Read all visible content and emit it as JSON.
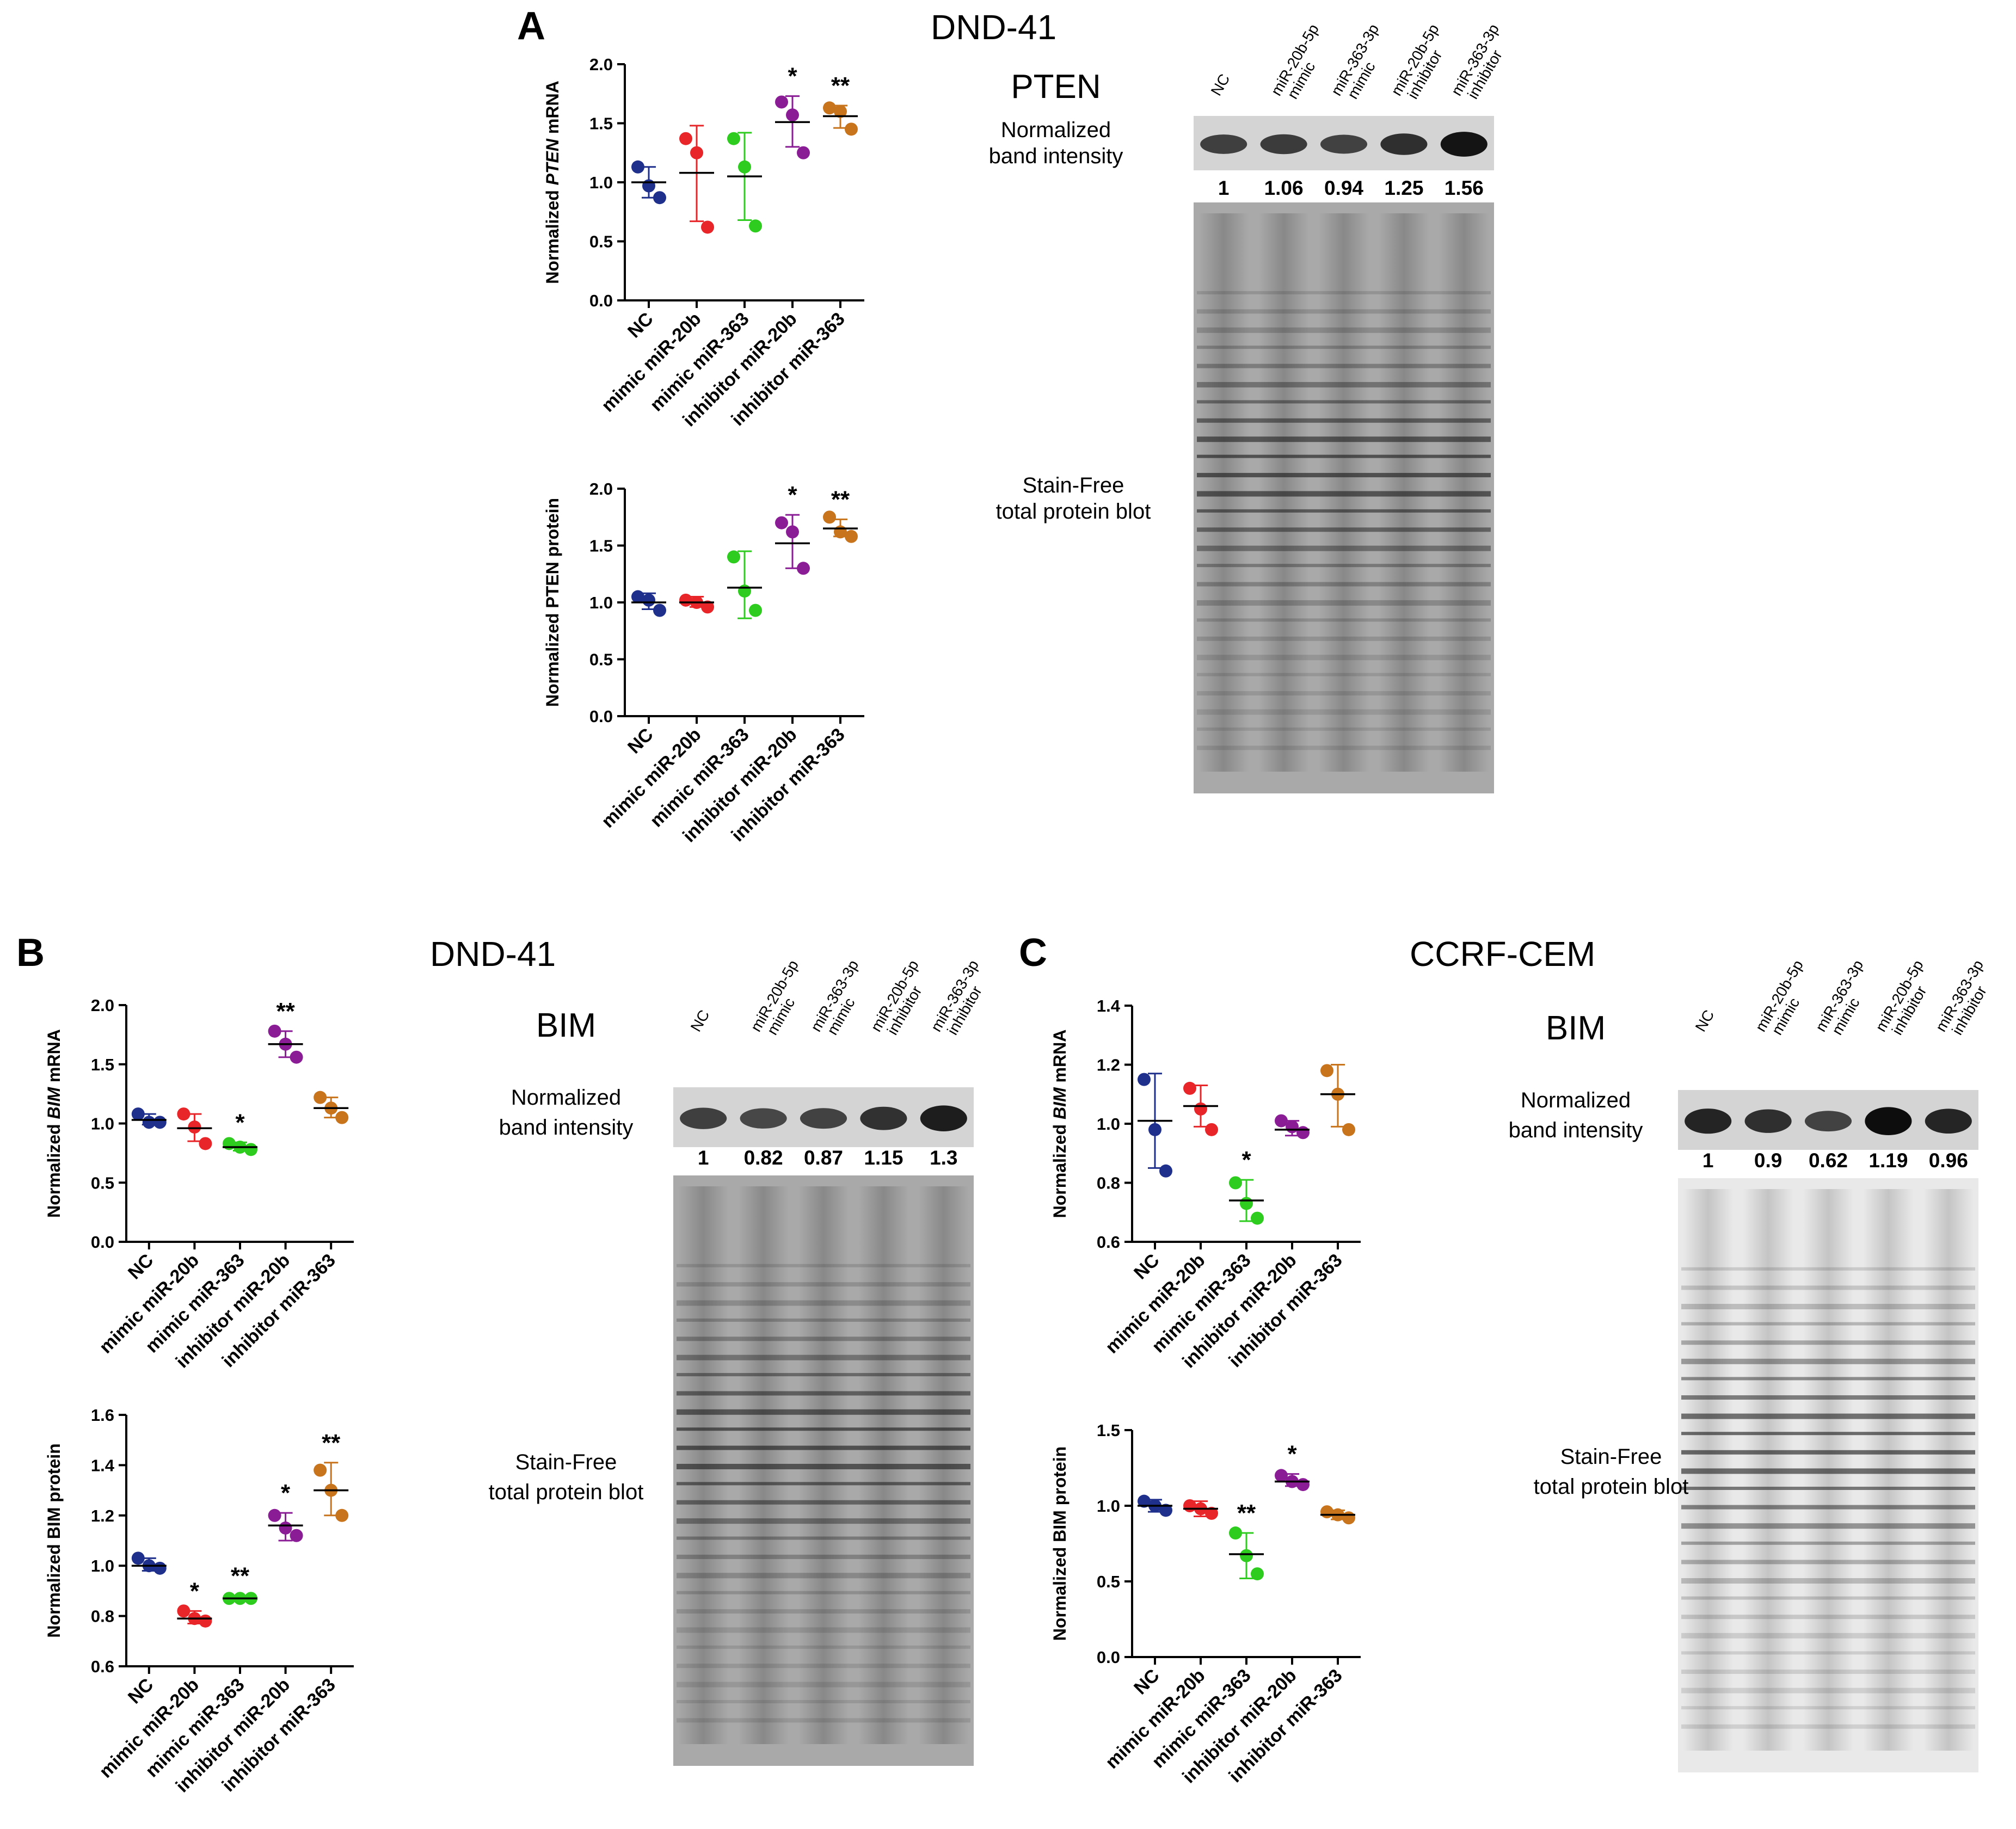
{
  "titles": {
    "panel_a_letter": "A",
    "panel_a_cell": "DND-41",
    "panel_b_letter": "B",
    "panel_b_cell": "DND-41",
    "panel_c_letter": "C",
    "panel_c_cell": "CCRF-CEM"
  },
  "colors": {
    "NC": "#1f2f8c",
    "mimic_miR20b": "#e8262a",
    "mimic_miR363": "#2ecc1f",
    "inhibitor_miR20b": "#8a1d96",
    "inhibitor_miR363": "#c8741d"
  },
  "chart_data": [
    {
      "id": "A_mrna",
      "type": "scatter",
      "ylabel_pre": "Normalized ",
      "ylabel_italic": "PTEN",
      "ylabel_post": " mRNA",
      "ylim": [
        0,
        2.0
      ],
      "yticks": [
        "0.0",
        "0.5",
        "1.0",
        "1.5",
        "2.0"
      ],
      "ytick_values": [
        0,
        0.5,
        1.0,
        1.5,
        2.0
      ],
      "categories": [
        "NC",
        "mimic miR-20b",
        "mimic miR-363",
        "inhibitor miR-20b",
        "inhibitor miR-363"
      ],
      "points": [
        [
          1.13,
          0.97,
          0.87
        ],
        [
          1.37,
          1.25,
          0.62
        ],
        [
          1.37,
          1.13,
          0.63
        ],
        [
          1.68,
          1.57,
          1.25
        ],
        [
          1.63,
          1.6,
          1.45
        ]
      ],
      "means": [
        1.0,
        1.08,
        1.05,
        1.51,
        1.56
      ],
      "err_low": [
        0.87,
        0.67,
        0.68,
        1.3,
        1.46
      ],
      "err_high": [
        1.13,
        1.48,
        1.42,
        1.73,
        1.65
      ],
      "significance": [
        "",
        "",
        "",
        "*",
        "**"
      ]
    },
    {
      "id": "A_protein",
      "type": "scatter",
      "ylabel_pre": "Normalized PTEN protein",
      "ylabel_italic": "",
      "ylabel_post": "",
      "ylim": [
        0,
        2.0
      ],
      "yticks": [
        "0.0",
        "0.5",
        "1.0",
        "1.5",
        "2.0"
      ],
      "ytick_values": [
        0,
        0.5,
        1.0,
        1.5,
        2.0
      ],
      "categories": [
        "NC",
        "mimic miR-20b",
        "mimic miR-363",
        "inhibitor miR-20b",
        "inhibitor miR-363"
      ],
      "points": [
        [
          1.05,
          1.02,
          0.93
        ],
        [
          1.02,
          1.0,
          0.96
        ],
        [
          1.4,
          1.1,
          0.93
        ],
        [
          1.7,
          1.62,
          1.3
        ],
        [
          1.75,
          1.62,
          1.58
        ]
      ],
      "means": [
        1.0,
        1.0,
        1.13,
        1.52,
        1.65
      ],
      "err_low": [
        0.94,
        0.96,
        0.86,
        1.3,
        1.58
      ],
      "err_high": [
        1.08,
        1.05,
        1.45,
        1.77,
        1.73
      ],
      "significance": [
        "",
        "",
        "",
        "*",
        "**"
      ]
    },
    {
      "id": "B_mrna",
      "type": "scatter",
      "ylabel_pre": "Normalized ",
      "ylabel_italic": "BIM",
      "ylabel_post": " mRNA",
      "ylim": [
        0,
        2.0
      ],
      "yticks": [
        "0.0",
        "0.5",
        "1.0",
        "1.5",
        "2.0"
      ],
      "ytick_values": [
        0,
        0.5,
        1.0,
        1.5,
        2.0
      ],
      "categories": [
        "NC",
        "mimic miR-20b",
        "mimic miR-363",
        "inhibitor miR-20b",
        "inhibitor miR-363"
      ],
      "points": [
        [
          1.08,
          1.01,
          1.01
        ],
        [
          1.08,
          0.97,
          0.83
        ],
        [
          0.83,
          0.8,
          0.78
        ],
        [
          1.78,
          1.67,
          1.56
        ],
        [
          1.22,
          1.13,
          1.05
        ]
      ],
      "means": [
        1.03,
        0.96,
        0.8,
        1.67,
        1.13
      ],
      "err_low": [
        0.99,
        0.85,
        0.77,
        1.56,
        1.05
      ],
      "err_high": [
        1.08,
        1.08,
        0.84,
        1.78,
        1.22
      ],
      "significance": [
        "",
        "",
        "*",
        "**",
        ""
      ]
    },
    {
      "id": "B_protein",
      "type": "scatter",
      "ylabel_pre": "Normalized BIM protein",
      "ylabel_italic": "",
      "ylabel_post": "",
      "ylim": [
        0.6,
        1.6
      ],
      "yticks": [
        "0.6",
        "0.8",
        "1.0",
        "1.2",
        "1.4",
        "1.6"
      ],
      "ytick_values": [
        0.6,
        0.8,
        1.0,
        1.2,
        1.4,
        1.6
      ],
      "categories": [
        "NC",
        "mimic miR-20b",
        "mimic miR-363",
        "inhibitor miR-20b",
        "inhibitor miR-363"
      ],
      "points": [
        [
          1.03,
          1.0,
          0.99
        ],
        [
          0.82,
          0.79,
          0.78
        ],
        [
          0.87,
          0.87,
          0.87
        ],
        [
          1.2,
          1.15,
          1.12
        ],
        [
          1.38,
          1.3,
          1.2
        ]
      ],
      "means": [
        1.0,
        0.79,
        0.87,
        1.16,
        1.3
      ],
      "err_low": [
        0.98,
        0.77,
        0.86,
        1.1,
        1.2
      ],
      "err_high": [
        1.03,
        0.82,
        0.88,
        1.21,
        1.41
      ],
      "significance": [
        "",
        "*",
        "**",
        "*",
        "**"
      ]
    },
    {
      "id": "C_mrna",
      "type": "scatter",
      "ylabel_pre": "Normalized ",
      "ylabel_italic": "BIM",
      "ylabel_post": " mRNA",
      "ylim": [
        0.6,
        1.4
      ],
      "yticks": [
        "0.6",
        "0.8",
        "1.0",
        "1.2",
        "1.4"
      ],
      "ytick_values": [
        0.6,
        0.8,
        1.0,
        1.2,
        1.4
      ],
      "categories": [
        "NC",
        "mimic miR-20b",
        "mimic miR-363",
        "inhibitor miR-20b",
        "inhibitor miR-363"
      ],
      "points": [
        [
          1.15,
          0.98,
          0.84
        ],
        [
          1.12,
          1.05,
          0.98
        ],
        [
          0.8,
          0.73,
          0.68
        ],
        [
          1.01,
          0.99,
          0.97
        ],
        [
          1.18,
          1.1,
          0.98
        ]
      ],
      "means": [
        1.01,
        1.06,
        0.74,
        0.98,
        1.1
      ],
      "err_low": [
        0.85,
        0.99,
        0.67,
        0.96,
        0.99
      ],
      "err_high": [
        1.17,
        1.13,
        0.81,
        1.01,
        1.2
      ],
      "significance": [
        "",
        "",
        "*",
        "",
        ""
      ]
    },
    {
      "id": "C_protein",
      "type": "scatter",
      "ylabel_pre": "Normalized BIM protein",
      "ylabel_italic": "",
      "ylabel_post": "",
      "ylim": [
        0,
        1.5
      ],
      "yticks": [
        "0.0",
        "0.5",
        "1.0",
        "1.5"
      ],
      "ytick_values": [
        0,
        0.5,
        1.0,
        1.5
      ],
      "categories": [
        "NC",
        "mimic miR-20b",
        "mimic miR-363",
        "inhibitor miR-20b",
        "inhibitor miR-363"
      ],
      "points": [
        [
          1.03,
          1.0,
          0.97
        ],
        [
          1.0,
          0.98,
          0.95
        ],
        [
          0.82,
          0.67,
          0.55
        ],
        [
          1.2,
          1.16,
          1.14
        ],
        [
          0.96,
          0.94,
          0.92
        ]
      ],
      "means": [
        1.0,
        0.98,
        0.68,
        1.16,
        0.94
      ],
      "err_low": [
        0.96,
        0.93,
        0.52,
        1.13,
        0.91
      ],
      "err_high": [
        1.04,
        1.03,
        0.82,
        1.21,
        0.97
      ],
      "significance": [
        "",
        "",
        "**",
        "*",
        ""
      ]
    }
  ],
  "blots": {
    "A": {
      "protein": "PTEN",
      "norm_label_line1": "Normalized",
      "norm_label_line2": "band intensity",
      "lanes": [
        "NC",
        "miR-20b-5p",
        "mimic",
        "miR-363-3p",
        "mimic",
        "miR-20b-5p",
        "inhibitor",
        "miR-363-3p",
        "inhibitor"
      ],
      "intensities": [
        "1",
        "1.06",
        "0.94",
        "1.25",
        "1.56"
      ],
      "band_strength": [
        0.55,
        0.58,
        0.52,
        0.7,
        0.95
      ],
      "stain_line1": "Stain-Free",
      "stain_line2": "total protein blot"
    },
    "B": {
      "protein": "BIM",
      "norm_label_line1": "Normalized",
      "norm_label_line2": "band intensity",
      "lanes": [
        "NC",
        "miR-20b-5p",
        "mimic",
        "miR-363-3p",
        "mimic",
        "miR-20b-5p",
        "inhibitor",
        "miR-363-3p",
        "inhibitor"
      ],
      "intensities": [
        "1",
        "0.82",
        "0.87",
        "1.15",
        "1.3"
      ],
      "band_strength": [
        0.55,
        0.48,
        0.5,
        0.68,
        0.85
      ],
      "stain_line1": "Stain-Free",
      "stain_line2": "total protein blot"
    },
    "C": {
      "protein": "BIM",
      "norm_label_line1": "Normalized",
      "norm_label_line2": "band intensity",
      "lanes": [
        "NC",
        "miR-20b-5p",
        "mimic",
        "miR-363-3p",
        "mimic",
        "miR-20b-5p",
        "inhibitor",
        "miR-363-3p",
        "inhibitor"
      ],
      "intensities": [
        "1",
        "0.9",
        "0.62",
        "1.19",
        "0.96"
      ],
      "band_strength": [
        0.8,
        0.7,
        0.5,
        1.0,
        0.78
      ],
      "stain_line1": "Stain-Free",
      "stain_line2": "total protein blot"
    }
  }
}
